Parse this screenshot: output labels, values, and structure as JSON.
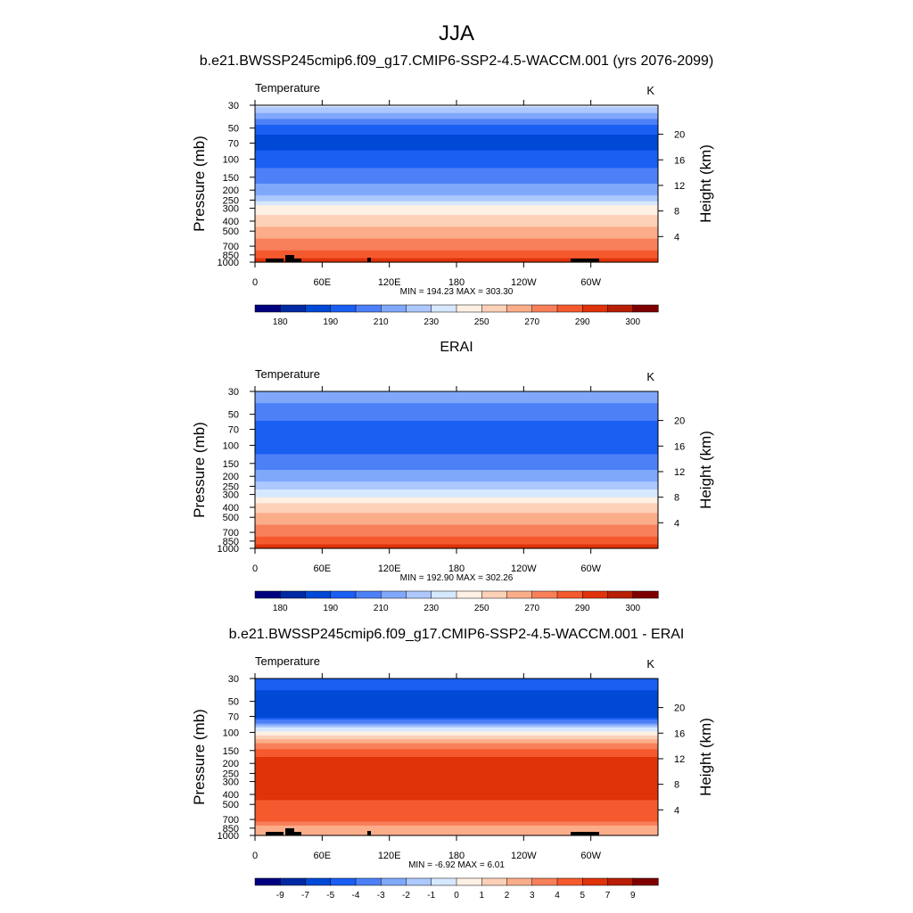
{
  "figure": {
    "title": "JJA"
  },
  "chart_data": [
    {
      "type": "heatmap",
      "title": "b.e21.BWSSP245cmip6.f09_g17.CMIP6-SSP2-4.5-WACCM.001 (yrs 2076-2099)",
      "variable": "Temperature",
      "units": "K",
      "ylabel": "Pressure (mb)",
      "y2label": "Height (km)",
      "x_ticks": [
        "0",
        "60E",
        "120E",
        "180",
        "120W",
        "60W"
      ],
      "y_ticks": [
        "30",
        "50",
        "70",
        "100",
        "150",
        "200",
        "250",
        "300",
        "400",
        "500",
        "700",
        "850",
        "1000"
      ],
      "y2_ticks": [
        "20",
        "16",
        "12",
        "8",
        "4"
      ],
      "ylim": [
        1000,
        30
      ],
      "stats": "MIN = 194.23  MAX = 303.30",
      "colorbar_labels": [
        "180",
        "190",
        "210",
        "230",
        "250",
        "270",
        "290",
        "300"
      ],
      "colorbar_colors": [
        "#00007f",
        "#0029a3",
        "#0048d6",
        "#1a5ef2",
        "#4d80f7",
        "#80a8fa",
        "#adc8fc",
        "#d6e8fe",
        "#fff0e4",
        "#fdd0b8",
        "#fbad8a",
        "#f7805a",
        "#f55a2e",
        "#e0330a",
        "#b81e05",
        "#7f0000"
      ],
      "rows_top_to_bottom": [
        [
          30,
          7
        ],
        [
          50,
          3
        ],
        [
          70,
          2
        ],
        [
          100,
          3
        ],
        [
          150,
          4
        ],
        [
          200,
          5
        ],
        [
          250,
          6
        ],
        [
          300,
          8
        ],
        [
          400,
          9
        ],
        [
          500,
          10
        ],
        [
          700,
          11
        ],
        [
          850,
          12
        ],
        [
          1000,
          13
        ]
      ],
      "rows_note": "pressure level and colour-band index (0-15) at that level"
    },
    {
      "type": "heatmap",
      "title": "ERAI",
      "variable": "Temperature",
      "units": "K",
      "ylabel": "Pressure (mb)",
      "y2label": "Height (km)",
      "x_ticks": [
        "0",
        "60E",
        "120E",
        "180",
        "120W",
        "60W"
      ],
      "y_ticks": [
        "30",
        "50",
        "70",
        "100",
        "150",
        "200",
        "250",
        "300",
        "400",
        "500",
        "700",
        "850",
        "1000"
      ],
      "y2_ticks": [
        "20",
        "16",
        "12",
        "8",
        "4"
      ],
      "ylim": [
        1000,
        30
      ],
      "stats": "MIN = 192.90  MAX = 302.26",
      "colorbar_labels": [
        "180",
        "190",
        "210",
        "230",
        "250",
        "270",
        "290",
        "300"
      ],
      "colorbar_colors": [
        "#00007f",
        "#0029a3",
        "#0048d6",
        "#1a5ef2",
        "#4d80f7",
        "#80a8fa",
        "#adc8fc",
        "#d6e8fe",
        "#fff0e4",
        "#fdd0b8",
        "#fbad8a",
        "#f7805a",
        "#f55a2e",
        "#e0330a",
        "#b81e05",
        "#7f0000"
      ],
      "rows_top_to_bottom": [
        [
          30,
          5
        ],
        [
          50,
          4
        ],
        [
          70,
          3
        ],
        [
          100,
          3
        ],
        [
          150,
          4
        ],
        [
          200,
          5
        ],
        [
          250,
          6
        ],
        [
          300,
          7
        ],
        [
          400,
          9
        ],
        [
          500,
          10
        ],
        [
          700,
          11
        ],
        [
          850,
          12
        ],
        [
          1000,
          13
        ]
      ],
      "rows_note": "pressure level and colour-band index (0-15) at that level"
    },
    {
      "type": "heatmap",
      "title": "b.e21.BWSSP245cmip6.f09_g17.CMIP6-SSP2-4.5-WACCM.001 - ERAI",
      "variable": "Temperature",
      "units": "K",
      "ylabel": "Pressure (mb)",
      "y2label": "Height (km)",
      "x_ticks": [
        "0",
        "60E",
        "120E",
        "180",
        "120W",
        "60W"
      ],
      "y_ticks": [
        "30",
        "50",
        "70",
        "100",
        "150",
        "200",
        "250",
        "300",
        "400",
        "500",
        "700",
        "850",
        "1000"
      ],
      "y2_ticks": [
        "20",
        "16",
        "12",
        "8",
        "4"
      ],
      "ylim": [
        1000,
        30
      ],
      "stats": "MIN =  -6.92  MAX =   6.01",
      "colorbar_labels": [
        "-9",
        "-7",
        "-5",
        "-4",
        "-3",
        "-2",
        "-1",
        "0",
        "1",
        "2",
        "3",
        "4",
        "5",
        "7",
        "9"
      ],
      "colorbar_colors": [
        "#00007f",
        "#0029a3",
        "#0048d6",
        "#1a5ef2",
        "#4d80f7",
        "#80a8fa",
        "#adc8fc",
        "#d6e8fe",
        "#fff0e4",
        "#fdd0b8",
        "#fbad8a",
        "#f7805a",
        "#f55a2e",
        "#e0330a",
        "#b81e05",
        "#7f0000"
      ],
      "rows_top_to_bottom": [
        [
          30,
          3
        ],
        [
          50,
          2
        ],
        [
          70,
          2
        ],
        [
          100,
          8
        ],
        [
          150,
          12
        ],
        [
          200,
          13
        ],
        [
          250,
          13
        ],
        [
          300,
          13
        ],
        [
          400,
          13
        ],
        [
          500,
          12
        ],
        [
          700,
          12
        ],
        [
          850,
          10
        ],
        [
          1000,
          10
        ]
      ],
      "rows_note": "pressure level and colour-band index (0-15) at that level"
    }
  ]
}
